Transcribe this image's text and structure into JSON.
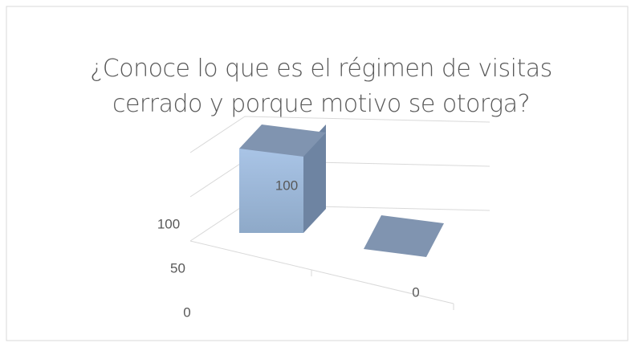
{
  "chart_data": {
    "type": "bar3d",
    "title": "¿Conoce lo que es el régimen de visitas cerrado y porque motivo se otorga?",
    "categories": [
      null,
      null
    ],
    "values": [
      100,
      0
    ],
    "color": "#8ea9c8",
    "ylim": [
      0,
      100
    ],
    "yticks": [
      0,
      50,
      100
    ],
    "grid": true
  }
}
